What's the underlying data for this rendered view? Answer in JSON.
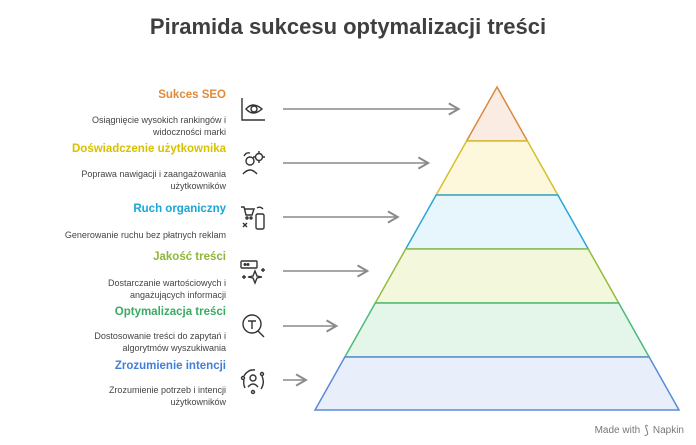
{
  "title": "Piramida sukcesu optymalizacji treści",
  "levels": [
    {
      "label": "Sukces SEO",
      "color": "#e08a3a",
      "fill": "#fbece3",
      "stroke": "#d9893f",
      "desc": [
        "Osiągnięcie wysokich rankingów i",
        "widoczności marki"
      ],
      "icon": "eye-chart-icon"
    },
    {
      "label": "Doświadczenie użytkownika",
      "color": "#d8c100",
      "fill": "#fdf8dc",
      "stroke": "#d4c02b",
      "desc": [
        "Poprawa nawigacji i zaangażowania",
        "użytkowników"
      ],
      "icon": "user-gear-icon"
    },
    {
      "label": "Ruch organiczny",
      "color": "#1aa6d6",
      "fill": "#e6f6fc",
      "stroke": "#2aa6d8",
      "desc": [
        "Generowanie ruchu bez płatnych reklam"
      ],
      "icon": "cart-phone-icon"
    },
    {
      "label": "Jakość treści",
      "color": "#8db63a",
      "fill": "#f3f8dc",
      "stroke": "#96ba3c",
      "desc": [
        "Dostarczanie wartościowych i",
        "angażujących informacji"
      ],
      "icon": "sparkle-window-icon"
    },
    {
      "label": "Optymalizacja treści",
      "color": "#3aaa64",
      "fill": "#e4f6ea",
      "stroke": "#4dba78",
      "desc": [
        "Dostosowanie treści do zapytań i",
        "algorytmów wyszukiwania"
      ],
      "icon": "magnifier-text-icon"
    },
    {
      "label": "Zrozumienie intencji",
      "color": "#3f7fd8",
      "fill": "#e8eefa",
      "stroke": "#5a8ad8",
      "desc": [
        "Zrozumienie potrzeb i intencji",
        "użytkowników"
      ],
      "icon": "user-cycle-icon"
    }
  ],
  "brand": {
    "prefix": "Made with",
    "name": "Napkin"
  }
}
